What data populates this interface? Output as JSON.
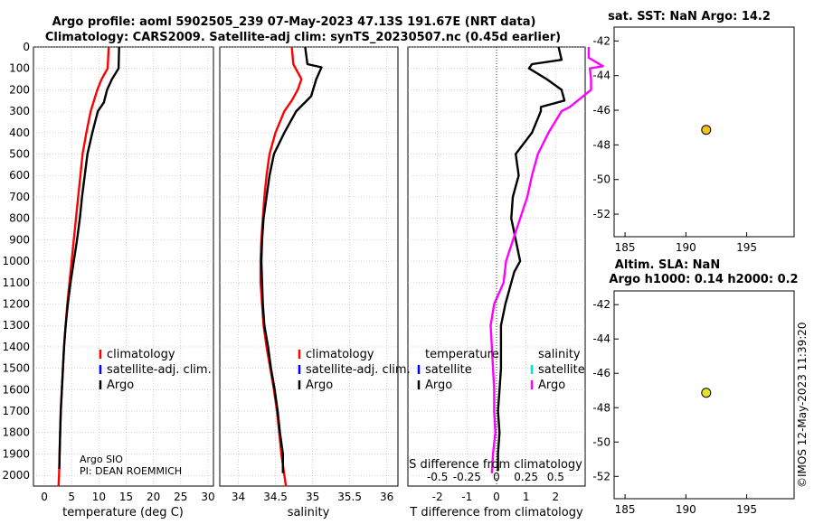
{
  "header": {
    "title_line1": "Argo profile: aoml 5902505_239 07-May-2023 47.13S 191.67E (NRT data)",
    "title_line2": "Climatology: CARS2009. Satellite-adj clim: synTS_20230507.nc (0.45d earlier)"
  },
  "colors": {
    "climatology": "#ff0000",
    "satellite_adj": "#0000ff",
    "argo": "#000000",
    "satellite_salinity": "#00e5e5",
    "argo_salinity": "#ff00ff",
    "marker_sst": "#f2c218",
    "marker_sla": "#e4e12a"
  },
  "chart_data": [
    {
      "id": "temperature",
      "type": "line",
      "xlabel": "temperature (deg C)",
      "xlim": [
        -2,
        31
      ],
      "ylim": [
        2050,
        0
      ],
      "xticks": [
        0,
        5,
        10,
        15,
        20,
        25,
        30
      ],
      "yticks": [
        0,
        100,
        200,
        300,
        400,
        500,
        600,
        700,
        800,
        900,
        1000,
        1100,
        1200,
        1300,
        1400,
        1500,
        1600,
        1700,
        1800,
        1900,
        2000
      ],
      "legend": [
        "climatology",
        "satellite-adj. clim.",
        "Argo"
      ],
      "annotations": [
        "Argo SIO",
        "PI: DEAN ROEMMICH"
      ],
      "series": [
        {
          "name": "climatology",
          "depth": [
            0,
            100,
            150,
            200,
            300,
            400,
            500,
            600,
            700,
            800,
            900,
            1000,
            1100,
            1200,
            1300,
            1400,
            1500,
            1600,
            1700,
            1800,
            1900,
            2000,
            2050
          ],
          "values": [
            11.8,
            11.6,
            10.5,
            9.7,
            8.5,
            7.7,
            7.0,
            6.6,
            6.2,
            5.8,
            5.4,
            5.0,
            4.6,
            4.2,
            3.9,
            3.6,
            3.4,
            3.2,
            3.0,
            2.9,
            2.8,
            2.7,
            2.6
          ]
        },
        {
          "name": "Argo",
          "depth": [
            0,
            100,
            150,
            200,
            260,
            300,
            400,
            500,
            600,
            700,
            800,
            900,
            1000,
            1100,
            1200,
            1300,
            1400,
            1500,
            1600,
            1700,
            1800,
            1900,
            1970
          ],
          "values": [
            13.7,
            13.6,
            12.4,
            11.5,
            10.9,
            9.8,
            8.8,
            7.9,
            7.4,
            6.9,
            6.5,
            6.0,
            5.4,
            4.8,
            4.3,
            3.9,
            3.6,
            3.4,
            3.2,
            3.0,
            2.9,
            2.8,
            2.75
          ]
        }
      ]
    },
    {
      "id": "salinity",
      "type": "line",
      "xlabel": "salinity",
      "xlim": [
        33.75,
        36.15
      ],
      "ylim": [
        2050,
        0
      ],
      "xticks": [
        34,
        34.5,
        35,
        35.5,
        36
      ],
      "legend": [
        "climatology",
        "satellite-adj. clim.",
        "Argo"
      ],
      "series": [
        {
          "name": "climatology",
          "depth": [
            0,
            80,
            150,
            200,
            250,
            300,
            400,
            500,
            600,
            700,
            800,
            900,
            1000,
            1100,
            1200,
            1300,
            1400,
            1500,
            1600,
            1700,
            1800,
            1900,
            2000,
            2050
          ],
          "values": [
            34.72,
            34.74,
            34.85,
            34.8,
            34.72,
            34.62,
            34.5,
            34.42,
            34.38,
            34.35,
            34.33,
            34.31,
            34.3,
            34.3,
            34.32,
            34.34,
            34.38,
            34.43,
            34.48,
            34.52,
            34.55,
            34.58,
            34.62,
            34.64
          ]
        },
        {
          "name": "Argo",
          "depth": [
            0,
            80,
            95,
            150,
            230,
            300,
            400,
            500,
            600,
            700,
            800,
            900,
            1000,
            1100,
            1200,
            1300,
            1400,
            1500,
            1600,
            1700,
            1800,
            1900,
            1990
          ],
          "values": [
            34.9,
            34.93,
            35.12,
            35.05,
            34.98,
            34.78,
            34.62,
            34.48,
            34.42,
            34.38,
            34.34,
            34.32,
            34.31,
            34.32,
            34.33,
            34.35,
            34.4,
            34.44,
            34.49,
            34.53,
            34.56,
            34.6,
            34.6
          ]
        }
      ]
    },
    {
      "id": "difference",
      "type": "line",
      "xlabel": "T difference from climatology",
      "xlabel_top": "S difference from climatology",
      "xlim": [
        -3.0,
        3.0
      ],
      "ylim": [
        2050,
        0
      ],
      "xticks": [
        -2,
        -1,
        0,
        1,
        2
      ],
      "xticks_top": [
        "-0.5",
        "-0.25",
        "0",
        "0.25",
        "0.5"
      ],
      "legend_temperature_title": "temperature",
      "legend_salinity_title": "salinity",
      "legend_temperature": [
        "satellite",
        "Argo"
      ],
      "legend_salinity": [
        "satellite",
        "Argo"
      ],
      "series": [
        {
          "name": "T Argo",
          "depth": [
            0,
            60,
            80,
            100,
            150,
            200,
            250,
            280,
            300,
            400,
            500,
            600,
            700,
            800,
            900,
            1000,
            1050,
            1100,
            1200,
            1300,
            1400,
            1500,
            1600,
            1700,
            1800,
            1900,
            1980
          ],
          "values": [
            2.1,
            2.2,
            1.2,
            1.1,
            1.7,
            2.2,
            2.3,
            1.5,
            1.5,
            1.2,
            0.65,
            0.75,
            0.55,
            0.5,
            0.65,
            0.8,
            0.6,
            0.5,
            0.3,
            0.15,
            0.15,
            0.15,
            0.1,
            0.05,
            0.1,
            0.05,
            0.05
          ]
        },
        {
          "name": "S Argo",
          "depth": [
            0,
            50,
            90,
            100,
            150,
            200,
            280,
            300,
            400,
            500,
            600,
            700,
            800,
            900,
            1000,
            1100,
            1200,
            1300,
            1400,
            1500,
            1600,
            1700,
            1800,
            1900,
            1990
          ],
          "values": [
            0.78,
            0.78,
            0.9,
            0.79,
            0.8,
            0.8,
            0.62,
            0.55,
            0.44,
            0.35,
            0.3,
            0.26,
            0.2,
            0.14,
            0.08,
            0.06,
            -0.02,
            -0.05,
            -0.04,
            -0.03,
            -0.02,
            -0.02,
            -0.01,
            -0.03,
            -0.04
          ]
        }
      ]
    },
    {
      "id": "map_sst",
      "type": "scatter",
      "title": "sat. SST: NaN Argo: 14.2",
      "xlim": [
        184.1,
        198.9
      ],
      "ylim": [
        -53.3,
        -41.2
      ],
      "xticks": [
        185,
        190,
        195
      ],
      "yticks": [
        -42,
        -44,
        -46,
        -48,
        -50,
        -52
      ],
      "points": [
        {
          "lon": 191.67,
          "lat": -47.13
        }
      ]
    },
    {
      "id": "map_sla",
      "type": "scatter",
      "title_line1": "Altim. SLA: NaN",
      "title_line2": "Argo h1000: 0.14 h2000: 0.2",
      "xlim": [
        184.1,
        198.9
      ],
      "ylim": [
        -53.3,
        -41.2
      ],
      "xticks": [
        185,
        190,
        195
      ],
      "yticks": [
        -42,
        -44,
        -46,
        -48,
        -50,
        -52
      ],
      "points": [
        {
          "lon": 191.67,
          "lat": -47.13
        }
      ]
    }
  ],
  "footer": {
    "stamp": "©IMOS 12-May-2023 11:39:20"
  }
}
